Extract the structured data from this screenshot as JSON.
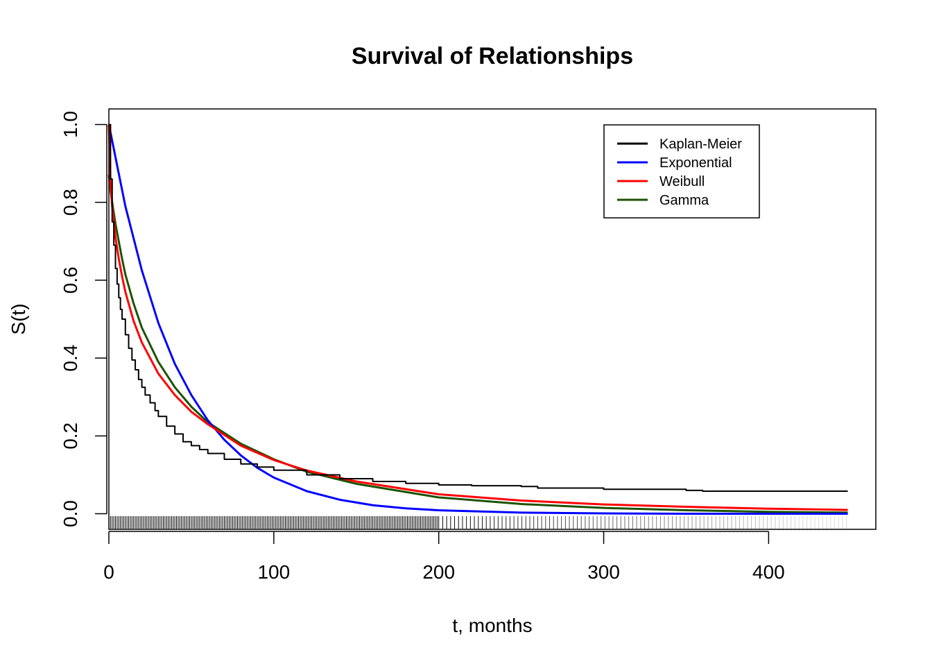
{
  "chart_data": {
    "type": "line",
    "title": "Survival of Relationships",
    "xlabel": "t, months",
    "ylabel": "S(t)",
    "xlim": [
      0,
      465
    ],
    "ylim": [
      -0.04,
      1.04
    ],
    "x_ticks": [
      0,
      100,
      200,
      300,
      400
    ],
    "x_tick_labels": [
      "0",
      "100",
      "200",
      "300",
      "400"
    ],
    "y_ticks": [
      0.0,
      0.2,
      0.4,
      0.6,
      0.8,
      1.0
    ],
    "y_tick_labels": [
      "0.0",
      "0.2",
      "0.4",
      "0.6",
      "0.8",
      "1.0"
    ],
    "grid": false,
    "legend_position": "top-right",
    "series": [
      {
        "name": "Kaplan-Meier",
        "color": "#000000",
        "step": true,
        "x": [
          0,
          1,
          2,
          3,
          4,
          5,
          6,
          7,
          8,
          10,
          12,
          14,
          16,
          18,
          20,
          22,
          25,
          28,
          30,
          35,
          40,
          45,
          50,
          55,
          60,
          70,
          80,
          90,
          100,
          120,
          140,
          160,
          180,
          200,
          220,
          250,
          260,
          300,
          350,
          360,
          400,
          448
        ],
        "y": [
          1.0,
          0.86,
          0.75,
          0.69,
          0.63,
          0.59,
          0.555,
          0.525,
          0.5,
          0.46,
          0.425,
          0.395,
          0.37,
          0.345,
          0.325,
          0.305,
          0.285,
          0.265,
          0.25,
          0.225,
          0.205,
          0.185,
          0.175,
          0.165,
          0.155,
          0.14,
          0.128,
          0.12,
          0.112,
          0.1,
          0.09,
          0.083,
          0.078,
          0.074,
          0.072,
          0.07,
          0.066,
          0.063,
          0.06,
          0.058,
          0.058,
          0.058
        ]
      },
      {
        "name": "Exponential",
        "color": "#0000ff",
        "x": [
          0,
          10,
          20,
          30,
          40,
          50,
          60,
          70,
          80,
          90,
          100,
          120,
          140,
          160,
          180,
          200,
          250,
          300,
          350,
          400,
          448
        ],
        "y": [
          1.0,
          0.79,
          0.625,
          0.49,
          0.385,
          0.305,
          0.24,
          0.19,
          0.15,
          0.118,
          0.093,
          0.058,
          0.036,
          0.022,
          0.014,
          0.009,
          0.003,
          0.001,
          0.0,
          0.0,
          0.0
        ]
      },
      {
        "name": "Weibull",
        "color": "#ff0000",
        "x": [
          0,
          1,
          2,
          4,
          6,
          8,
          10,
          15,
          20,
          30,
          40,
          50,
          60,
          80,
          100,
          120,
          150,
          200,
          250,
          300,
          350,
          400,
          448
        ],
        "y": [
          1.0,
          0.85,
          0.79,
          0.71,
          0.655,
          0.61,
          0.57,
          0.495,
          0.44,
          0.36,
          0.305,
          0.262,
          0.23,
          0.175,
          0.138,
          0.111,
          0.083,
          0.05,
          0.034,
          0.024,
          0.018,
          0.013,
          0.01
        ]
      },
      {
        "name": "Gamma",
        "color": "#1a5200",
        "x": [
          0,
          1,
          2,
          4,
          6,
          8,
          10,
          15,
          20,
          30,
          40,
          50,
          60,
          80,
          100,
          120,
          150,
          200,
          250,
          300,
          350,
          400,
          448
        ],
        "y": [
          0.87,
          0.83,
          0.8,
          0.745,
          0.7,
          0.655,
          0.615,
          0.54,
          0.478,
          0.39,
          0.325,
          0.275,
          0.235,
          0.18,
          0.14,
          0.108,
          0.077,
          0.042,
          0.025,
          0.015,
          0.009,
          0.005,
          0.003
        ]
      }
    ],
    "rug": {
      "color": "#000000",
      "dense_until": 200,
      "sparse_until": 448
    }
  }
}
